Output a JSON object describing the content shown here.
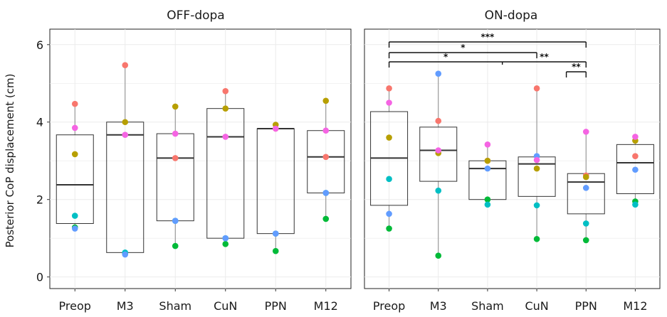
{
  "chart_data": {
    "type": "box",
    "ylabel": "Posterior CoP displacement (cm)",
    "ylim": [
      -0.3,
      6.4
    ],
    "yticks": [
      0,
      2,
      4,
      6
    ],
    "categories": [
      "Preop",
      "M3",
      "Sham",
      "CuN",
      "PPN",
      "M12"
    ],
    "grid": true,
    "point_colors": [
      "#f8766d",
      "#b79f00",
      "#00ba38",
      "#00bfc4",
      "#619cff",
      "#f564e3"
    ],
    "panels": [
      {
        "title": "OFF-dopa",
        "boxes": [
          {
            "category": "Preop",
            "q1": 1.38,
            "median": 2.38,
            "q3": 3.67,
            "whisker_low": 1.25,
            "whisker_high": 4.47
          },
          {
            "category": "M3",
            "q1": 0.63,
            "median": 3.67,
            "q3": 4.0,
            "whisker_low": 0.58,
            "whisker_high": 5.47
          },
          {
            "category": "Sham",
            "q1": 1.45,
            "median": 3.07,
            "q3": 3.7,
            "whisker_low": 0.8,
            "whisker_high": 4.4
          },
          {
            "category": "CuN",
            "q1": 1.0,
            "median": 3.62,
            "q3": 4.35,
            "whisker_low": 0.85,
            "whisker_high": 4.8
          },
          {
            "category": "PPN",
            "q1": 1.12,
            "median": 3.83,
            "q3": 3.83,
            "whisker_low": 0.67,
            "whisker_high": 3.93
          },
          {
            "category": "M12",
            "q1": 2.17,
            "median": 3.1,
            "q3": 3.78,
            "whisker_low": 1.5,
            "whisker_high": 4.55
          }
        ],
        "points": [
          {
            "category": "Preop",
            "values": [
              4.47,
              3.17,
              1.28,
              1.58,
              1.25,
              3.85
            ]
          },
          {
            "category": "M3",
            "values": [
              5.47,
              4.0,
              0.6,
              0.63,
              0.58,
              3.67
            ]
          },
          {
            "category": "Sham",
            "values": [
              3.07,
              4.4,
              0.8,
              1.45,
              1.45,
              3.7
            ]
          },
          {
            "category": "CuN",
            "values": [
              4.8,
              4.35,
              0.85,
              1.0,
              1.0,
              3.62
            ]
          },
          {
            "category": "PPN",
            "values": [
              3.83,
              3.93,
              0.67,
              1.12,
              1.12,
              3.83
            ]
          },
          {
            "category": "M12",
            "values": [
              3.1,
              4.55,
              1.5,
              2.17,
              2.17,
              3.78
            ]
          }
        ]
      },
      {
        "title": "ON-dopa",
        "boxes": [
          {
            "category": "Preop",
            "q1": 1.85,
            "median": 3.07,
            "q3": 4.27,
            "whisker_low": 1.25,
            "whisker_high": 4.87
          },
          {
            "category": "M3",
            "q1": 2.47,
            "median": 3.27,
            "q3": 3.87,
            "whisker_low": 0.55,
            "whisker_high": 5.25
          },
          {
            "category": "Sham",
            "q1": 2.0,
            "median": 2.8,
            "q3": 3.0,
            "whisker_low": 1.87,
            "whisker_high": 3.42
          },
          {
            "category": "CuN",
            "q1": 2.08,
            "median": 2.92,
            "q3": 3.1,
            "whisker_low": 0.98,
            "whisker_high": 4.87
          },
          {
            "category": "PPN",
            "q1": 1.63,
            "median": 2.45,
            "q3": 2.67,
            "whisker_low": 0.95,
            "whisker_high": 3.75
          },
          {
            "category": "M12",
            "q1": 2.15,
            "median": 2.95,
            "q3": 3.42,
            "whisker_low": 1.87,
            "whisker_high": 3.62
          }
        ],
        "points": [
          {
            "category": "Preop",
            "values": [
              4.87,
              3.6,
              1.25,
              2.53,
              1.63,
              4.5
            ]
          },
          {
            "category": "M3",
            "values": [
              4.03,
              3.2,
              0.55,
              2.23,
              5.25,
              3.27
            ]
          },
          {
            "category": "Sham",
            "values": [
              3.0,
              3.0,
              2.0,
              1.87,
              2.8,
              3.42
            ]
          },
          {
            "category": "CuN",
            "values": [
              4.87,
              2.8,
              0.98,
              1.85,
              3.12,
              3.02
            ]
          },
          {
            "category": "PPN",
            "values": [
              2.62,
              2.58,
              0.95,
              1.38,
              2.3,
              3.75
            ]
          },
          {
            "category": "M12",
            "values": [
              3.12,
              3.52,
              1.95,
              1.87,
              2.77,
              3.62
            ]
          }
        ],
        "comparisons": [
          {
            "from": "Preop",
            "to": "PPN",
            "label": "***"
          },
          {
            "from": "Preop",
            "to": "CuN",
            "label": "*"
          },
          {
            "from": "Preop",
            "to": "PPN",
            "label": "*"
          },
          {
            "from": "CuN",
            "to": "PPN",
            "label": "**"
          },
          {
            "from": "CuN",
            "to": "PPN",
            "label": "**"
          }
        ]
      }
    ]
  }
}
